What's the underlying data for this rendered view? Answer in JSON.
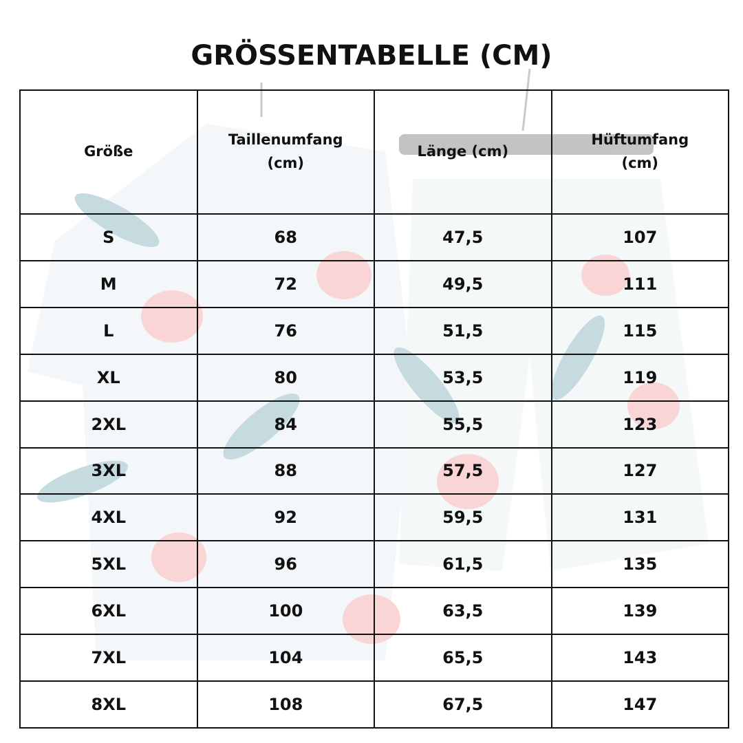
{
  "title": "GRÖSSENTABELLE (CM)",
  "table": {
    "header": [
      "Größe",
      "Taillenumfang (cm)",
      "Länge (cm)",
      "Hüftumfang (cm)"
    ],
    "rows": [
      [
        "S",
        "68",
        "47,5",
        "107"
      ],
      [
        "M",
        "72",
        "49,5",
        "111"
      ],
      [
        "L",
        "76",
        "51,5",
        "115"
      ],
      [
        "XL",
        "80",
        "53,5",
        "119"
      ],
      [
        "2XL",
        "84",
        "55,5",
        "123"
      ],
      [
        "3XL",
        "88",
        "57,5",
        "127"
      ],
      [
        "4XL",
        "92",
        "59,5",
        "131"
      ],
      [
        "5XL",
        "96",
        "61,5",
        "135"
      ],
      [
        "6XL",
        "100",
        "63,5",
        "139"
      ],
      [
        "7XL",
        "104",
        "65,5",
        "143"
      ],
      [
        "8XL",
        "108",
        "67,5",
        "147"
      ]
    ]
  }
}
